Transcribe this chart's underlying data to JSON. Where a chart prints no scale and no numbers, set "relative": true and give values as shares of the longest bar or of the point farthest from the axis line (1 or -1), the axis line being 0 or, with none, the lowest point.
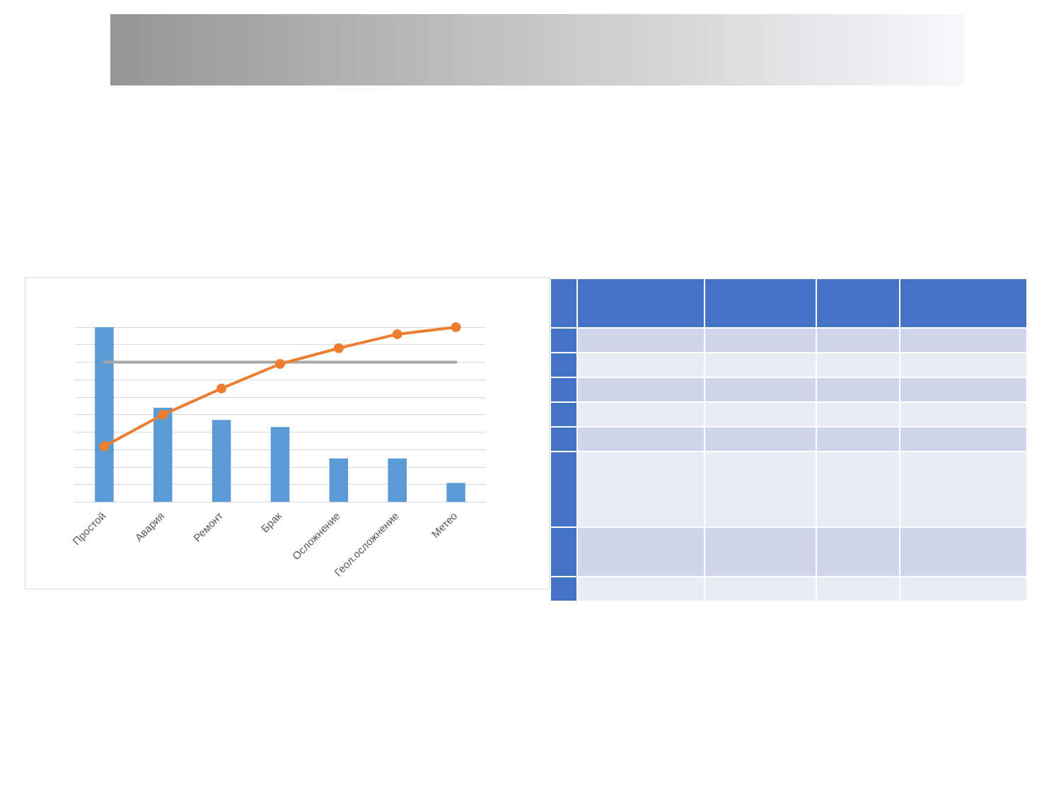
{
  "chart_data": {
    "type": "bar",
    "relative": true,
    "grid": "y",
    "legend": false,
    "categories": [
      "Простой",
      "Авария",
      "Ремонт",
      "Брак",
      "Осложнение",
      "Геол.осложнение",
      "Метео"
    ],
    "series": [
      {
        "color": "#5b9bd5",
        "values": [
          1,
          0.54,
          0.47,
          0.43,
          0.25,
          0.25,
          0.11
        ]
      },
      {
        "type": "line",
        "color": "#ed7d31",
        "marker": "circle",
        "values": [
          0.32,
          0.5,
          0.65,
          0.79,
          0.88,
          0.96,
          1
        ]
      },
      {
        "type": "line",
        "color": "#a5a5a5",
        "marker": "none",
        "values": [
          0.8,
          0.8,
          0.8,
          0.8,
          0.8,
          0.8,
          0.8
        ]
      }
    ]
  }
}
